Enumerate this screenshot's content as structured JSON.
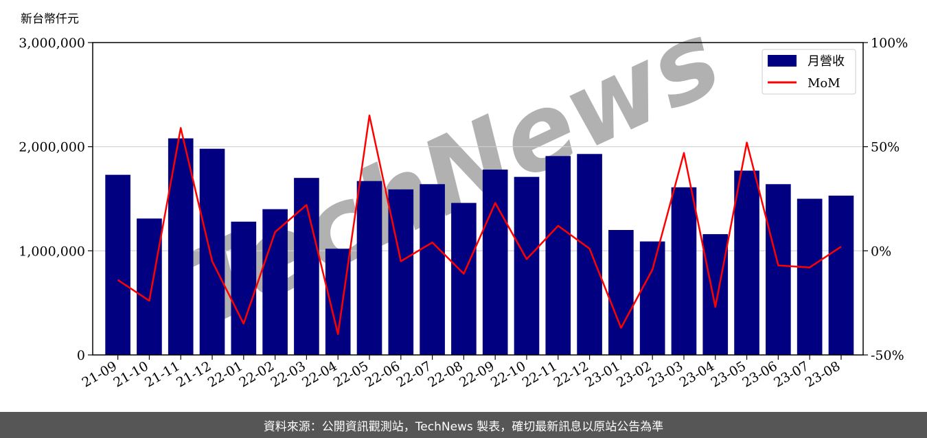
{
  "chart_data": {
    "type": "bar",
    "unit_label": "新台幣仟元",
    "categories": [
      "21-09",
      "21-10",
      "21-11",
      "21-12",
      "22-01",
      "22-02",
      "22-03",
      "22-04",
      "22-05",
      "22-06",
      "22-07",
      "22-08",
      "22-09",
      "22-10",
      "22-11",
      "22-12",
      "23-01",
      "23-02",
      "23-03",
      "23-04",
      "23-05",
      "23-06",
      "23-07",
      "23-08"
    ],
    "series": [
      {
        "name": "月營收",
        "kind": "bar",
        "axis": "left",
        "color": "#000080",
        "values": [
          1730000,
          1310000,
          2080000,
          1980000,
          1280000,
          1400000,
          1700000,
          1020000,
          1670000,
          1590000,
          1640000,
          1460000,
          1780000,
          1710000,
          1910000,
          1930000,
          1200000,
          1090000,
          1610000,
          1160000,
          1770000,
          1640000,
          1500000,
          1530000
        ]
      },
      {
        "name": "MoM",
        "kind": "line",
        "axis": "right",
        "color": "#ff0000",
        "values": [
          -14,
          -24,
          59,
          -5,
          -35,
          9,
          22,
          -40,
          65,
          -5,
          4,
          -11,
          23,
          -4,
          12,
          1,
          -37,
          -9,
          47,
          -27,
          52,
          -7,
          -8,
          2
        ]
      }
    ],
    "ylim_left": [
      0,
      3000000
    ],
    "ylim_right": [
      -50,
      100
    ],
    "yticks_left": [
      0,
      1000000,
      2000000,
      3000000
    ],
    "yticks_left_labels": [
      "0",
      "1,000,000",
      "2,000,000",
      "3,000,000"
    ],
    "yticks_right": [
      -50,
      0,
      50,
      100
    ],
    "yticks_right_labels": [
      "-50%",
      "0%",
      "50%",
      "100%"
    ],
    "grid": "horizontal",
    "legend_position": "top-right"
  },
  "watermark": "TechNews",
  "footer": "資料來源：公開資訊觀測站，TechNews 製表，確切最新訊息以原站公告為準"
}
